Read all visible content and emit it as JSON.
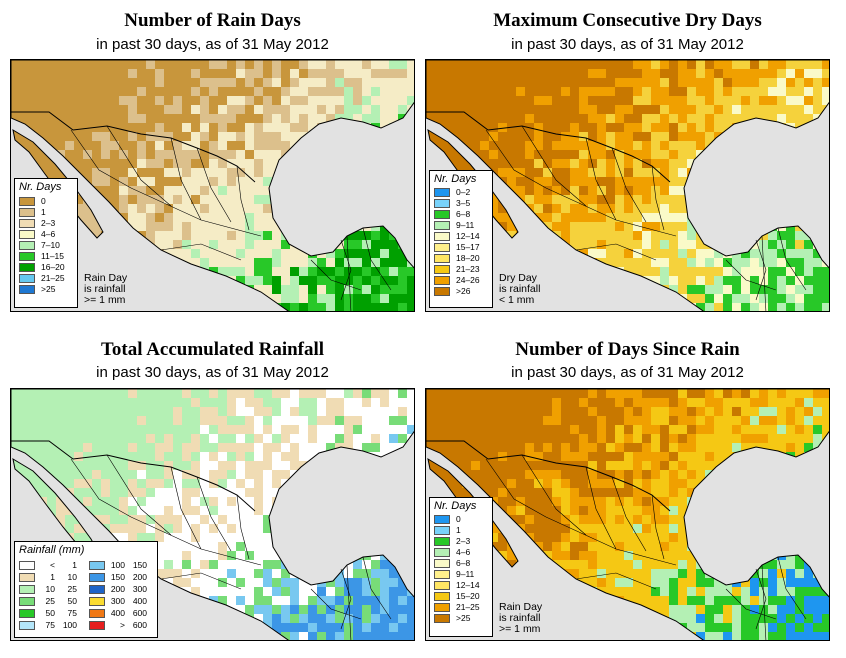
{
  "panels": [
    {
      "title": "Number of Rain Days",
      "subtitle": "in past 30 days, as of  31 May 2012",
      "legend_title": "Nr. Days",
      "legend_items": [
        {
          "label": "0",
          "color": "#c8963c"
        },
        {
          "label": "1",
          "color": "#dcc08c"
        },
        {
          "label": "2–3",
          "color": "#f0dcb4"
        },
        {
          "label": "4–6",
          "color": "#fafac8"
        },
        {
          "label": "7–10",
          "color": "#b4f0b4"
        },
        {
          "label": "11–15",
          "color": "#28c828"
        },
        {
          "label": "16–20",
          "color": "#00a000"
        },
        {
          "label": "21–25",
          "color": "#64c8f0"
        },
        {
          "label": ">25",
          "color": "#1e78d2"
        }
      ],
      "note_lines": [
        "Rain Day",
        "is rainfall",
        ">= 1 mm"
      ],
      "map_colors": {
        "land_a": "#f5ecc6",
        "land_b": "#dcc08c",
        "land_c": "#c8963c",
        "wet_a": "#b4f0b4",
        "wet_b": "#28c828",
        "wet_c": "#00a000"
      }
    },
    {
      "title": "Maximum Consecutive Dry Days",
      "subtitle": "in past 30 days, as of  31 May 2012",
      "legend_title": "Nr. Days",
      "legend_items": [
        {
          "label": "0–2",
          "color": "#1e96f0"
        },
        {
          "label": "3–5",
          "color": "#78d2fa"
        },
        {
          "label": "6–8",
          "color": "#28c828"
        },
        {
          "label": "9–11",
          "color": "#b4f0b4"
        },
        {
          "label": "12–14",
          "color": "#fafac8"
        },
        {
          "label": "15–17",
          "color": "#fff08c"
        },
        {
          "label": "18–20",
          "color": "#ffe664"
        },
        {
          "label": "21–23",
          "color": "#f5c814"
        },
        {
          "label": "24–26",
          "color": "#f0a000"
        },
        {
          "label": ">26",
          "color": "#c87800"
        }
      ],
      "note_lines": [
        "Dry Day",
        "is rainfall",
        "< 1 mm"
      ],
      "map_colors": {
        "land_a": "#f5d23c",
        "land_b": "#f0a000",
        "land_c": "#c87800",
        "wet_a": "#fafac8",
        "wet_b": "#b4f0b4",
        "wet_c": "#28c828"
      }
    },
    {
      "title": "Total Accumulated Rainfall",
      "subtitle": "in past 30 days, as of  31 May 2012",
      "legend_title": "Rainfall (mm)",
      "legend_left": [
        {
          "a": "<",
          "b": "1",
          "color": "#ffffff"
        },
        {
          "a": "1",
          "b": "10",
          "color": "#f0dcb4"
        },
        {
          "a": "10",
          "b": "25",
          "color": "#b4f0b4"
        },
        {
          "a": "25",
          "b": "50",
          "color": "#78dc78"
        },
        {
          "a": "50",
          "b": "75",
          "color": "#28c828"
        },
        {
          "a": "75",
          "b": "100",
          "color": "#b4e6fa"
        }
      ],
      "legend_right": [
        {
          "a": "100",
          "b": "150",
          "color": "#78c8f0"
        },
        {
          "a": "150",
          "b": "200",
          "color": "#3c96e6"
        },
        {
          "a": "200",
          "b": "300",
          "color": "#1e64c8"
        },
        {
          "a": "300",
          "b": "400",
          "color": "#fadc32"
        },
        {
          "a": "400",
          "b": "600",
          "color": "#f07814"
        },
        {
          "a": ">",
          "b": "600",
          "color": "#e61e1e"
        }
      ],
      "map_colors": {
        "land_a": "#ffffff",
        "land_b": "#f0dcb4",
        "land_c": "#b4f0b4",
        "wet_a": "#78dc78",
        "wet_b": "#78c8f0",
        "wet_c": "#3c96e6"
      }
    },
    {
      "title": "Number of Days Since Rain",
      "subtitle": "in past 30 days, as of  31 May 2012",
      "legend_title": "Nr. Days",
      "legend_items": [
        {
          "label": "0",
          "color": "#1e96f0"
        },
        {
          "label": "1",
          "color": "#78d2fa"
        },
        {
          "label": "2–3",
          "color": "#28c828"
        },
        {
          "label": "4–6",
          "color": "#b4f0b4"
        },
        {
          "label": "6–8",
          "color": "#fafac8"
        },
        {
          "label": "9–11",
          "color": "#fff08c"
        },
        {
          "label": "12–14",
          "color": "#ffe664"
        },
        {
          "label": "15–20",
          "color": "#f5c814"
        },
        {
          "label": "21–25",
          "color": "#f0a000"
        },
        {
          "label": ">25",
          "color": "#c87800"
        }
      ],
      "note_lines": [
        "Rain Day",
        "is rainfall",
        ">= 1 mm"
      ],
      "map_colors": {
        "land_a": "#f5c814",
        "land_b": "#f0a000",
        "land_c": "#c87800",
        "wet_a": "#b4f0b4",
        "wet_b": "#28c828",
        "wet_c": "#1e96f0"
      }
    }
  ]
}
